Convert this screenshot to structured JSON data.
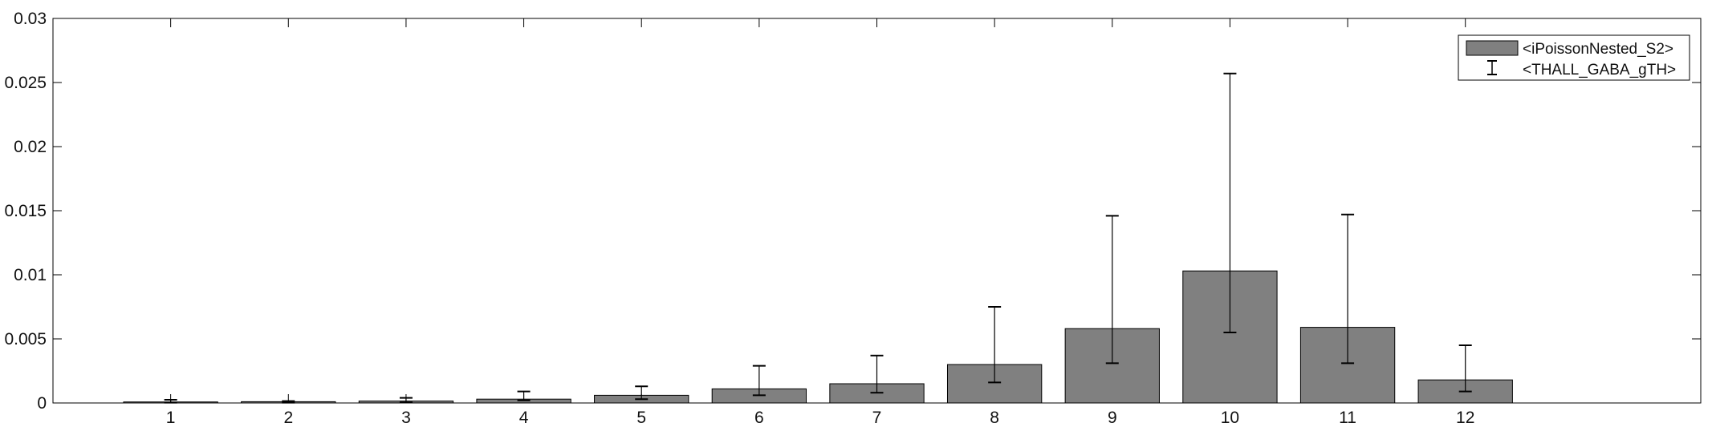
{
  "chart_data": {
    "type": "bar",
    "title": "",
    "xlabel": "",
    "ylabel": "",
    "categories": [
      "1",
      "2",
      "3",
      "4",
      "5",
      "6",
      "7",
      "8",
      "9",
      "10",
      "11",
      "12"
    ],
    "xlim": [
      0,
      14
    ],
    "ylim": [
      0,
      0.03
    ],
    "yticks": [
      0,
      0.005,
      0.01,
      0.015,
      0.02,
      0.025,
      0.03
    ],
    "ytick_labels": [
      "0",
      "0.005",
      "0.01",
      "0.015",
      "0.02",
      "0.025",
      "0.03"
    ],
    "grid": false,
    "legend_position": "top-right",
    "bar_color": "#808080",
    "series": [
      {
        "name": "<iPoissonNested_S2>",
        "values": [
          8e-05,
          0.0001,
          0.00015,
          0.0003,
          0.0006,
          0.0011,
          0.0015,
          0.003,
          0.0058,
          0.0103,
          0.0059,
          0.0018
        ]
      }
    ],
    "error_bars": {
      "name": "<THALL_GABA_gTH>",
      "lower": [
        2e-05,
        2e-05,
        5e-05,
        0.0002,
        0.0003,
        0.0006,
        0.0008,
        0.0016,
        0.0031,
        0.0055,
        0.0031,
        0.0009
      ],
      "upper": [
        0.00025,
        0.00015,
        0.0004,
        0.0009,
        0.0013,
        0.0029,
        0.0037,
        0.0075,
        0.0146,
        0.0257,
        0.0147,
        0.0045
      ]
    }
  }
}
